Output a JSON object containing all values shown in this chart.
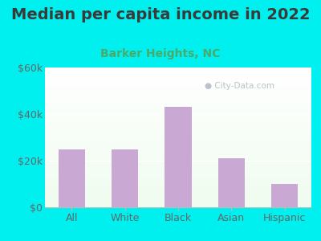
{
  "title": "Median per capita income in 2022",
  "subtitle": "Barker Heights, NC",
  "categories": [
    "All",
    "White",
    "Black",
    "Asian",
    "Hispanic"
  ],
  "values": [
    25000,
    25000,
    43000,
    21000,
    10000
  ],
  "bar_color": "#c9a8d4",
  "title_color": "#3a3a3a",
  "subtitle_color": "#4aaa6a",
  "background_outer": "#00f0f0",
  "ylim": [
    0,
    60000
  ],
  "yticks": [
    0,
    20000,
    40000,
    60000
  ],
  "ytick_labels": [
    "$0",
    "$20k",
    "$40k",
    "$60k"
  ],
  "watermark": "City-Data.com",
  "title_fontsize": 14,
  "subtitle_fontsize": 10,
  "tick_fontsize": 9,
  "bar_width": 0.5
}
